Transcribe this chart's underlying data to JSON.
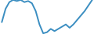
{
  "x": [
    0,
    1,
    2,
    3,
    4,
    5,
    6,
    7,
    8,
    9,
    10,
    11,
    12,
    13,
    14,
    15,
    16,
    17,
    18,
    19,
    20,
    21,
    22,
    23,
    24
  ],
  "y": [
    18,
    30,
    36,
    38,
    37,
    38,
    36,
    37,
    35,
    28,
    16,
    8,
    9,
    12,
    10,
    12,
    14,
    16,
    13,
    16,
    20,
    24,
    28,
    33,
    38
  ],
  "line_color": "#3b8ec1",
  "linewidth": 1.4,
  "background_color": "#ffffff"
}
